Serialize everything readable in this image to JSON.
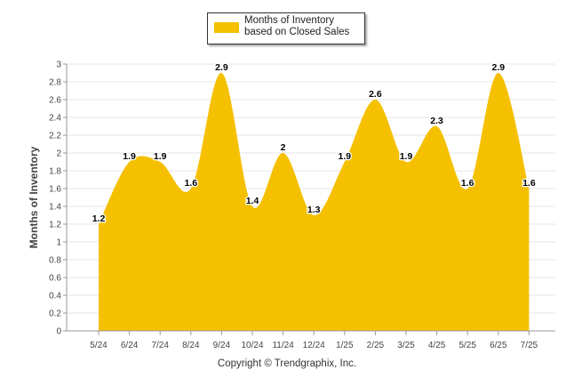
{
  "chart_data": {
    "type": "area",
    "categories": [
      "5/24",
      "6/24",
      "7/24",
      "8/24",
      "9/24",
      "10/24",
      "11/24",
      "12/24",
      "1/25",
      "2/25",
      "3/25",
      "4/25",
      "5/25",
      "6/25",
      "7/25"
    ],
    "series": [
      {
        "name": "Months of Inventory based on Closed Sales",
        "values": [
          1.2,
          1.9,
          1.9,
          1.6,
          2.9,
          1.4,
          2,
          1.3,
          1.9,
          2.6,
          1.9,
          2.3,
          1.6,
          2.9,
          1.6
        ],
        "color": "#f5c000"
      }
    ],
    "data_labels": [
      "1.2",
      "1.9",
      "1.9",
      "1.6",
      "2.9",
      "1.4",
      "2",
      "1.3",
      "1.9",
      "2.6",
      "1.9",
      "2.3",
      "1.6",
      "2.9",
      "1.6"
    ],
    "ylabel": "Months of Inventory",
    "xlabel": "",
    "ylim": [
      0,
      3
    ],
    "yticks": [
      "0",
      "0.2",
      "0.4",
      "0.6",
      "0.8",
      "1",
      "1.2",
      "1.4",
      "1.6",
      "1.8",
      "2",
      "2.2",
      "2.4",
      "2.6",
      "2.8",
      "3"
    ],
    "grid": true,
    "legend_position": "top-center"
  },
  "legend": {
    "label": "Months of Inventory based on Closed Sales"
  },
  "footer": {
    "copyright": "Copyright © Trendgraphix, Inc."
  }
}
